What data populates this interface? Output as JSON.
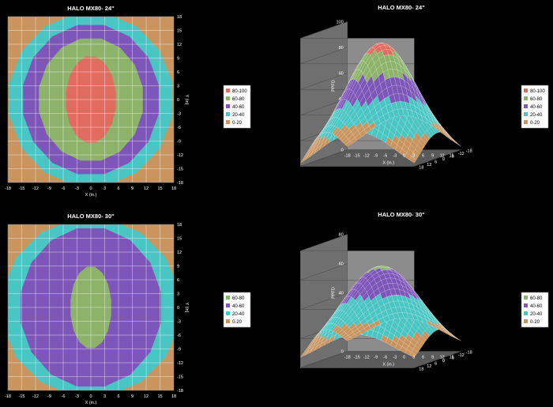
{
  "chart_data": [
    {
      "id": "c1",
      "type": "heatmap",
      "title": "HALO MX80- 24\"",
      "xlabel": "X (in.)",
      "ylabel": "Y (in)",
      "x_ticks": [
        "-18",
        "-15",
        "-12",
        "-9",
        "-6",
        "-3",
        "0",
        "3",
        "6",
        "9",
        "12",
        "15",
        "18"
      ],
      "y_ticks": [
        "18",
        "15",
        "12",
        "9",
        "6",
        "3",
        "0",
        "-3",
        "-6",
        "-9",
        "-12",
        "-15",
        "-18"
      ],
      "xlim": [
        -18,
        18
      ],
      "ylim": [
        -18,
        18
      ],
      "grid": true,
      "legend_position": "right",
      "legend": [
        {
          "label": "80-100",
          "color": "#e06b5e"
        },
        {
          "label": "60-80",
          "color": "#8db36a"
        },
        {
          "label": "40-60",
          "color": "#7e55b8"
        },
        {
          "label": "20-40",
          "color": "#49c6c4"
        },
        {
          "label": "0-20",
          "color": "#c9945e"
        }
      ],
      "bands": [
        {
          "range": "80-100",
          "rx": 5.5,
          "ry": 9.5
        },
        {
          "range": "60-80",
          "rx": 11.5,
          "ry": 13.5
        },
        {
          "range": "40-60",
          "rx": 15,
          "ry": 16.5
        },
        {
          "range": "20-40",
          "rx": 18,
          "ry": 19
        }
      ]
    },
    {
      "id": "c2",
      "type": "area",
      "title": "HALO MX80- 24\"",
      "xlabel": "X (in.)",
      "ylabel": "PPFD",
      "y_ticks": [
        "0",
        "20",
        "40",
        "60",
        "80",
        "100"
      ],
      "x_ticks": [
        "-18",
        "-15",
        "-12",
        "-9",
        "-6",
        "-3",
        "0",
        "3",
        "6",
        "9",
        "12",
        "15"
      ],
      "depth_ticks": [
        "18",
        "12",
        "6",
        "0",
        "-6",
        "-12",
        "-18"
      ],
      "zlim": [
        0,
        100
      ],
      "legend_position": "right",
      "legend": [
        {
          "label": "80-100",
          "color": "#e06b5e"
        },
        {
          "label": "60-80",
          "color": "#8db36a"
        },
        {
          "label": "40-60",
          "color": "#7e55b8"
        },
        {
          "label": "20-40",
          "color": "#49c6c4"
        },
        {
          "label": "0-20",
          "color": "#c9945e"
        }
      ],
      "peak": 90
    },
    {
      "id": "c3",
      "type": "heatmap",
      "title": "HALO MX80- 30\"",
      "xlabel": "X (in.)",
      "ylabel": "Y (in)",
      "x_ticks": [
        "-18",
        "-15",
        "-12",
        "-9",
        "-6",
        "-3",
        "0",
        "3",
        "6",
        "9",
        "12",
        "15",
        "18"
      ],
      "y_ticks": [
        "18",
        "15",
        "12",
        "9",
        "6",
        "3",
        "0",
        "-3",
        "-6",
        "-9",
        "-12",
        "-15",
        "-18"
      ],
      "xlim": [
        -18,
        18
      ],
      "ylim": [
        -18,
        18
      ],
      "grid": true,
      "legend_position": "right",
      "legend": [
        {
          "label": "60-80",
          "color": "#8db36a"
        },
        {
          "label": "40-60",
          "color": "#7e55b8"
        },
        {
          "label": "20-40",
          "color": "#49c6c4"
        },
        {
          "label": "0-20",
          "color": "#c9945e"
        }
      ],
      "bands": [
        {
          "range": "60-80",
          "rx": 4.5,
          "ry": 9
        },
        {
          "range": "40-60",
          "rx": 15.5,
          "ry": 17.5
        },
        {
          "range": "20-40",
          "rx": 19.5,
          "ry": 19.5
        }
      ]
    },
    {
      "id": "c4",
      "type": "area",
      "title": "HALO MX80- 30\"",
      "xlabel": "X (in.)",
      "ylabel": "PPFD",
      "y_ticks": [
        "0",
        "20",
        "40",
        "60",
        "80"
      ],
      "x_ticks": [
        "-18",
        "-15",
        "-12",
        "-9",
        "-6",
        "-3",
        "0",
        "3",
        "6",
        "9",
        "12",
        "15"
      ],
      "depth_ticks": [
        "18",
        "12",
        "6",
        "0",
        "-6",
        "-12",
        "-18"
      ],
      "zlim": [
        0,
        80
      ],
      "legend_position": "right",
      "legend": [
        {
          "label": "60-80",
          "color": "#8db36a"
        },
        {
          "label": "40-60",
          "color": "#7e55b8"
        },
        {
          "label": "20-40",
          "color": "#49c6c4"
        },
        {
          "label": "0-20",
          "color": "#c9945e"
        }
      ],
      "peak": 64
    }
  ]
}
